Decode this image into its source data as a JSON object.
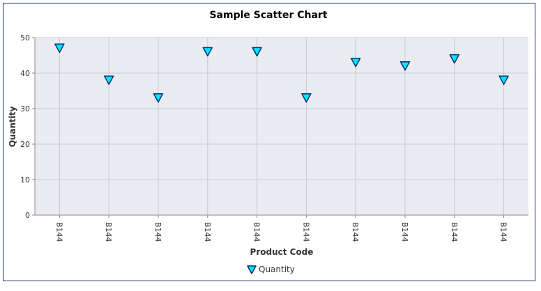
{
  "chart_data": {
    "type": "scatter",
    "title": "Sample Scatter Chart",
    "xlabel": "Product Code",
    "ylabel": "Quantity",
    "categories": [
      "B144",
      "B144",
      "B144",
      "B144",
      "B144",
      "B144",
      "B144",
      "B144",
      "B144",
      "B144"
    ],
    "series": [
      {
        "name": "Quantity",
        "values": [
          47,
          38,
          33,
          46,
          46,
          33,
          43,
          42,
          44,
          38
        ],
        "marker": "triangle-down",
        "color": "#00e5ff",
        "stroke": "#0b2b6e"
      }
    ],
    "ylim": [
      0,
      50
    ],
    "yticks": [
      0,
      10,
      20,
      30,
      40,
      50
    ],
    "grid": true,
    "legend_position": "bottom",
    "plot_background": "#ebebf2",
    "grid_color": "#c8c8d0"
  }
}
